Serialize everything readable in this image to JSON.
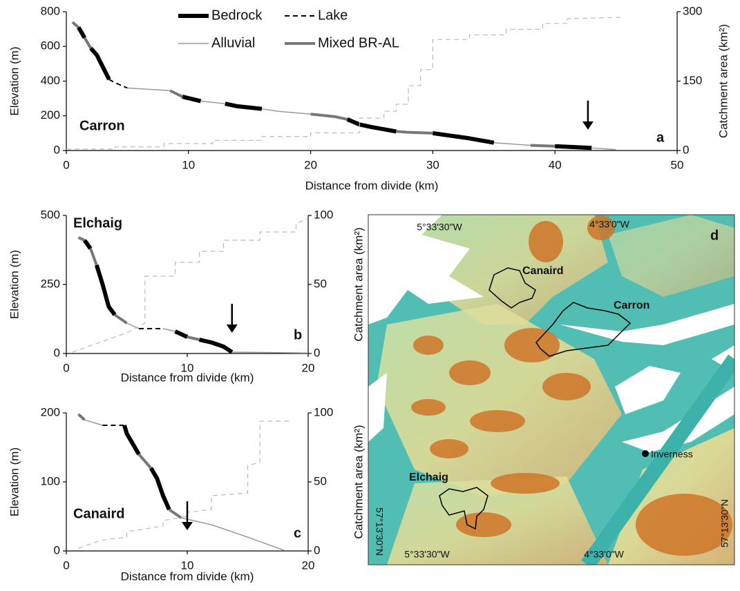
{
  "chart_data": [
    {
      "type": "line",
      "annotation": "Carron",
      "panel_label": "a",
      "x_label": "Distance from divide (km)",
      "y_label": "Elevation (m)",
      "y2_label": "Catchment area (km²)",
      "xlim": [
        0,
        50
      ],
      "xticks": [
        0,
        10,
        20,
        30,
        40,
        50
      ],
      "ylim": [
        0,
        800
      ],
      "yticks": [
        0,
        200,
        400,
        600,
        800
      ],
      "y2lim": [
        0,
        300
      ],
      "y2ticks": [
        0,
        150,
        300
      ],
      "legend": "top",
      "arrow_x": 42.7,
      "series": [
        {
          "name": "Bedrock",
          "color": "#000000",
          "line_width": 6,
          "dashed": false,
          "x": [
            1,
            1.5,
            null,
            2,
            2.5,
            3,
            3.5,
            null,
            9.5,
            11,
            null,
            13,
            14,
            16,
            null,
            23,
            24,
            25,
            27,
            null,
            30,
            32,
            33,
            35,
            null,
            40,
            43
          ],
          "values": [
            710,
            650,
            null,
            590,
            550,
            480,
            410,
            null,
            310,
            285,
            null,
            270,
            255,
            240,
            null,
            180,
            150,
            135,
            110,
            null,
            100,
            80,
            70,
            45,
            null,
            25,
            15
          ]
        },
        {
          "name": "Lake",
          "color": "#000000",
          "line_width": 2,
          "dashed": true,
          "x": [
            3.5,
            4,
            5
          ],
          "values": [
            410,
            390,
            360
          ]
        },
        {
          "name": "Alluvial",
          "color": "#999999",
          "line_width": 1.5,
          "dashed": false,
          "x": [
            5,
            8.5,
            null,
            11,
            13,
            null,
            16,
            17.5,
            20,
            null,
            35,
            38,
            null,
            43,
            45
          ],
          "values": [
            360,
            345,
            null,
            285,
            270,
            null,
            240,
            225,
            210,
            null,
            45,
            30,
            null,
            15,
            5
          ]
        },
        {
          "name": "Mixed BR-AL",
          "color": "#777777",
          "line_width": 4,
          "dashed": false,
          "x": [
            0.5,
            1,
            null,
            1.5,
            2,
            null,
            8.5,
            9.5,
            null,
            20,
            22,
            23,
            null,
            27,
            28,
            30,
            null,
            38,
            40
          ],
          "values": [
            740,
            710,
            null,
            650,
            590,
            null,
            345,
            310,
            null,
            210,
            195,
            180,
            null,
            110,
            105,
            100,
            null,
            30,
            25
          ]
        },
        {
          "axis": "y2",
          "color": "#bbbbbb",
          "line_width": 1.2,
          "dashed": true,
          "x": [
            0,
            4,
            4,
            8,
            8,
            12,
            12,
            16,
            16,
            20,
            20,
            24,
            24,
            26,
            26,
            27,
            27,
            28,
            28,
            29,
            29,
            30,
            30,
            33,
            33,
            36,
            36,
            39,
            39,
            41,
            41,
            45.5
          ],
          "values": [
            3,
            3,
            8,
            8,
            15,
            15,
            22,
            22,
            30,
            30,
            38,
            38,
            70,
            70,
            85,
            85,
            100,
            100,
            140,
            140,
            175,
            175,
            240,
            240,
            250,
            250,
            262,
            262,
            275,
            275,
            285,
            288
          ]
        }
      ]
    },
    {
      "type": "line",
      "annotation": "Elchaig",
      "panel_label": "b",
      "x_label": "Distance from divide (km)",
      "y_label": "Elevation (m)",
      "y2_label": "Catchment area (km²)",
      "xlim": [
        0,
        20
      ],
      "xticks": [
        0,
        10,
        20
      ],
      "ylim": [
        0,
        500
      ],
      "yticks": [
        0,
        250,
        500
      ],
      "y2lim": [
        0,
        100
      ],
      "y2ticks": [
        0,
        50,
        100
      ],
      "arrow_x": 13.7,
      "series": [
        {
          "color": "#000000",
          "line_width": 6,
          "dashed": false,
          "x": [
            1.5,
            2,
            null,
            2.5,
            3,
            3.5,
            4,
            null,
            9,
            10,
            null,
            11,
            12,
            13,
            13.7
          ],
          "values": [
            410,
            380,
            null,
            320,
            250,
            170,
            140,
            null,
            80,
            60,
            null,
            50,
            40,
            25,
            5
          ]
        },
        {
          "color": "#000000",
          "line_width": 2,
          "dashed": true,
          "x": [
            6,
            8
          ],
          "values": [
            90,
            90
          ]
        },
        {
          "color": "#999999",
          "line_width": 1.5,
          "dashed": false,
          "x": [
            5,
            6,
            null,
            8,
            9,
            null,
            13.7,
            20
          ],
          "values": [
            110,
            90,
            null,
            90,
            80,
            null,
            5,
            2
          ]
        },
        {
          "color": "#777777",
          "line_width": 4,
          "dashed": false,
          "x": [
            1,
            1.5,
            null,
            2,
            2.5,
            null,
            4,
            5,
            null,
            10,
            11
          ],
          "values": [
            420,
            410,
            null,
            380,
            320,
            null,
            140,
            110,
            null,
            60,
            50
          ]
        },
        {
          "axis": "y2",
          "color": "#bbbbbb",
          "line_width": 1.2,
          "dashed": true,
          "x": [
            0.5,
            5,
            6.5,
            6.5,
            9,
            9,
            11,
            11,
            13,
            13,
            16,
            16,
            19,
            19,
            20
          ],
          "values": [
            1,
            15,
            22,
            56,
            56,
            66,
            66,
            74,
            74,
            82,
            82,
            88,
            88,
            94,
            98
          ]
        }
      ]
    },
    {
      "type": "line",
      "annotation": "Canaird",
      "panel_label": "c",
      "x_label": "Distance from divide (km)",
      "y_label": "Elevation (m)",
      "y2_label": "Catchment area (km²)",
      "xlim": [
        0,
        20
      ],
      "xticks": [
        0,
        10,
        20
      ],
      "ylim": [
        0,
        200
      ],
      "yticks": [
        0,
        100,
        200
      ],
      "y2lim": [
        0,
        100
      ],
      "y2ticks": [
        0,
        50,
        100
      ],
      "arrow_x": 10,
      "series": [
        {
          "color": "#000000",
          "line_width": 6,
          "dashed": false,
          "x": [
            4.8,
            5,
            6,
            null,
            7,
            7.5,
            8,
            8.5
          ],
          "values": [
            182,
            170,
            140,
            null,
            120,
            105,
            80,
            60
          ]
        },
        {
          "color": "#000000",
          "line_width": 2,
          "dashed": true,
          "x": [
            3,
            4.8
          ],
          "values": [
            182,
            182
          ]
        },
        {
          "color": "#999999",
          "line_width": 1.5,
          "dashed": false,
          "x": [
            1.5,
            3,
            null,
            9.5,
            12,
            15,
            18
          ],
          "values": [
            190,
            182,
            null,
            48,
            38,
            20,
            1
          ]
        },
        {
          "color": "#777777",
          "line_width": 4,
          "dashed": false,
          "x": [
            1,
            1.5,
            null,
            6,
            7,
            null,
            8.5,
            9.5
          ],
          "values": [
            198,
            190,
            null,
            140,
            120,
            null,
            60,
            48
          ]
        },
        {
          "axis": "y2",
          "color": "#bbbbbb",
          "line_width": 1.2,
          "dashed": true,
          "x": [
            1,
            3,
            5,
            5,
            8,
            8,
            10,
            10,
            12,
            12,
            15,
            15,
            16,
            16,
            18.5
          ],
          "values": [
            2,
            8,
            10,
            14,
            18,
            22,
            25,
            28,
            30,
            40,
            42,
            62,
            64,
            94,
            94
          ]
        }
      ]
    }
  ],
  "map": {
    "panel_label": "d",
    "longitude_labels": [
      "5°33'30\"W",
      "4°33'0\"W",
      "5°33'30\"W",
      "4°33'0\"W"
    ],
    "latitude_labels": [
      "57°13'30\"N",
      "57°13'30\"N"
    ],
    "catchments": [
      "Canaird",
      "Carron",
      "Elchaig"
    ],
    "town": "Inverness"
  }
}
